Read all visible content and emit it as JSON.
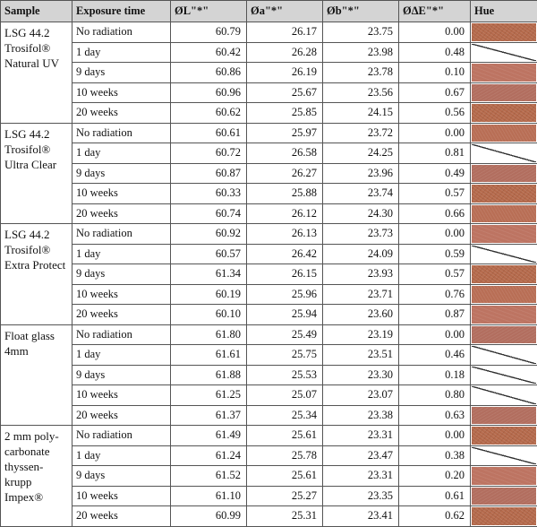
{
  "headers": {
    "sample": "Sample",
    "exposure": "Exposure time",
    "l": "ØL\"*\"",
    "a": "Øa\"*\"",
    "b": "Øb\"*\"",
    "de": "ØΔE\"*\"",
    "hue": "Hue"
  },
  "groups": [
    {
      "sample": "LSG 44.2 Trosifol® Natural UV",
      "rows": [
        {
          "exposure": "No radiation",
          "l": "60.79",
          "a": "26.17",
          "b": "23.75",
          "de": "0.00",
          "hue": "swatch"
        },
        {
          "exposure": "1 day",
          "l": "60.42",
          "a": "26.28",
          "b": "23.98",
          "de": "0.48",
          "hue": "empty"
        },
        {
          "exposure": "9 days",
          "l": "60.86",
          "a": "26.19",
          "b": "23.78",
          "de": "0.10",
          "hue": "swatch"
        },
        {
          "exposure": "10 weeks",
          "l": "60.96",
          "a": "25.67",
          "b": "23.56",
          "de": "0.67",
          "hue": "swatch"
        },
        {
          "exposure": "20 weeks",
          "l": "60.62",
          "a": "25.85",
          "b": "24.15",
          "de": "0.56",
          "hue": "swatch"
        }
      ]
    },
    {
      "sample": "LSG 44.2 Trosifol® Ultra Clear",
      "rows": [
        {
          "exposure": "No radiation",
          "l": "60.61",
          "a": "25.97",
          "b": "23.72",
          "de": "0.00",
          "hue": "swatch"
        },
        {
          "exposure": "1 day",
          "l": "60.72",
          "a": "26.58",
          "b": "24.25",
          "de": "0.81",
          "hue": "empty"
        },
        {
          "exposure": "9 days",
          "l": "60.87",
          "a": "26.27",
          "b": "23.96",
          "de": "0.49",
          "hue": "swatch"
        },
        {
          "exposure": "10 weeks",
          "l": "60.33",
          "a": "25.88",
          "b": "23.74",
          "de": "0.57",
          "hue": "swatch"
        },
        {
          "exposure": "20 weeks",
          "l": "60.74",
          "a": "26.12",
          "b": "24.30",
          "de": "0.66",
          "hue": "swatch"
        }
      ]
    },
    {
      "sample": "LSG 44.2 Trosifol® Extra Protect",
      "rows": [
        {
          "exposure": "No radiation",
          "l": "60.92",
          "a": "26.13",
          "b": "23.73",
          "de": "0.00",
          "hue": "swatch"
        },
        {
          "exposure": "1 day",
          "l": "60.57",
          "a": "26.42",
          "b": "24.09",
          "de": "0.59",
          "hue": "empty"
        },
        {
          "exposure": "9 days",
          "l": "61.34",
          "a": "26.15",
          "b": "23.93",
          "de": "0.57",
          "hue": "swatch"
        },
        {
          "exposure": "10 weeks",
          "l": "60.19",
          "a": "25.96",
          "b": "23.71",
          "de": "0.76",
          "hue": "swatch"
        },
        {
          "exposure": "20 weeks",
          "l": "60.10",
          "a": "25.94",
          "b": "23.60",
          "de": "0.87",
          "hue": "swatch"
        }
      ]
    },
    {
      "sample": "Float glass 4mm",
      "rows": [
        {
          "exposure": "No radiation",
          "l": "61.80",
          "a": "25.49",
          "b": "23.19",
          "de": "0.00",
          "hue": "swatch"
        },
        {
          "exposure": "1 day",
          "l": "61.61",
          "a": "25.75",
          "b": "23.51",
          "de": "0.46",
          "hue": "empty"
        },
        {
          "exposure": "9 days",
          "l": "61.88",
          "a": "25.53",
          "b": "23.30",
          "de": "0.18",
          "hue": "empty"
        },
        {
          "exposure": "10 weeks",
          "l": "61.25",
          "a": "25.07",
          "b": "23.07",
          "de": "0.80",
          "hue": "empty"
        },
        {
          "exposure": "20 weeks",
          "l": "61.37",
          "a": "25.34",
          "b": "23.38",
          "de": "0.63",
          "hue": "swatch"
        }
      ]
    },
    {
      "sample": "2 mm poly-carbonate thyssen-krupp Impex®",
      "rows": [
        {
          "exposure": "No radiation",
          "l": "61.49",
          "a": "25.61",
          "b": "23.31",
          "de": "0.00",
          "hue": "swatch"
        },
        {
          "exposure": "1 day",
          "l": "61.24",
          "a": "25.78",
          "b": "23.47",
          "de": "0.38",
          "hue": "empty"
        },
        {
          "exposure": "9 days",
          "l": "61.52",
          "a": "25.61",
          "b": "23.31",
          "de": "0.20",
          "hue": "swatch"
        },
        {
          "exposure": "10 weeks",
          "l": "61.10",
          "a": "25.27",
          "b": "23.35",
          "de": "0.61",
          "hue": "swatch"
        },
        {
          "exposure": "20 weeks",
          "l": "60.99",
          "a": "25.31",
          "b": "23.41",
          "de": "0.62",
          "hue": "swatch"
        }
      ]
    }
  ],
  "colors": {
    "header_bg": "#d4d4d4",
    "border": "#555555",
    "swatch_variants": [
      "#b56a4c",
      "#b86e55",
      "#bd7462",
      "#b26e5f"
    ]
  }
}
